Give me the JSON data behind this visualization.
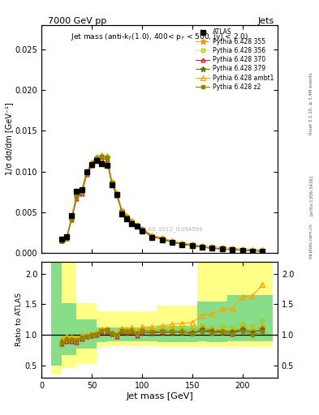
{
  "title_top_left": "7000 GeV pp",
  "title_top_right": "Jets",
  "plot_title": "Jet mass (anti-k$_T$(1.0), 400< p$_T$ < 500, |y| < 2.0)",
  "xlabel": "Jet mass [GeV]",
  "ylabel_main": "1/σ dσ/dm [GeV⁻¹]",
  "ylabel_ratio": "Ratio to ATLAS",
  "watermark": "ATLAS_2012_I1094564",
  "rivet_text": "Rivet 3.1.10, ≥ 3.4M events",
  "arxiv_text": "[arXiv:1306.3436]",
  "mcplots_text": "mcplots.cern.ch",
  "x_data": [
    20,
    25,
    30,
    35,
    40,
    45,
    50,
    55,
    60,
    65,
    70,
    75,
    80,
    85,
    90,
    95,
    100,
    110,
    120,
    130,
    140,
    150,
    160,
    170,
    180,
    190,
    200,
    210,
    220
  ],
  "atlas_y": [
    0.00175,
    0.002,
    0.0046,
    0.00755,
    0.0078,
    0.01,
    0.0109,
    0.0114,
    0.011,
    0.0108,
    0.0084,
    0.0072,
    0.0048,
    0.0042,
    0.0036,
    0.0033,
    0.0027,
    0.00195,
    0.00165,
    0.00128,
    0.00105,
    0.0009,
    0.00068,
    0.00058,
    0.00048,
    0.00042,
    0.00032,
    0.00028,
    0.00022
  ],
  "p355_y": [
    0.00158,
    0.00188,
    0.00435,
    0.00705,
    0.00762,
    0.0099,
    0.01098,
    0.01168,
    0.01188,
    0.01178,
    0.00872,
    0.00732,
    0.00522,
    0.00452,
    0.00392,
    0.00342,
    0.00293,
    0.00208,
    0.00178,
    0.00138,
    0.00113,
    0.00096,
    0.00076,
    0.00063,
    0.00052,
    0.00045,
    0.00036,
    0.0003,
    0.00025
  ],
  "p356_y": [
    0.0016,
    0.00192,
    0.00438,
    0.00708,
    0.00765,
    0.00993,
    0.011,
    0.01171,
    0.01191,
    0.01181,
    0.00874,
    0.00734,
    0.00524,
    0.00454,
    0.00394,
    0.00344,
    0.00295,
    0.0021,
    0.0018,
    0.0014,
    0.00115,
    0.00098,
    0.00078,
    0.00065,
    0.00054,
    0.00047,
    0.00038,
    0.00032,
    0.00027
  ],
  "p370_y": [
    0.00148,
    0.00178,
    0.00415,
    0.00668,
    0.00728,
    0.00965,
    0.01075,
    0.01145,
    0.01158,
    0.01148,
    0.00848,
    0.00708,
    0.00508,
    0.00438,
    0.00378,
    0.00328,
    0.00282,
    0.002,
    0.00172,
    0.00133,
    0.00109,
    0.00093,
    0.00073,
    0.00061,
    0.0005,
    0.00043,
    0.00035,
    0.00029,
    0.00024
  ],
  "p379_y": [
    0.00156,
    0.00186,
    0.00432,
    0.00702,
    0.00759,
    0.00987,
    0.01095,
    0.01165,
    0.01185,
    0.01175,
    0.00868,
    0.00728,
    0.00519,
    0.00449,
    0.00389,
    0.00339,
    0.0029,
    0.00206,
    0.00176,
    0.00136,
    0.00111,
    0.00094,
    0.00074,
    0.00062,
    0.00051,
    0.00044,
    0.00035,
    0.00029,
    0.00024
  ],
  "pambt1_y": [
    0.00165,
    0.00196,
    0.00442,
    0.00716,
    0.00773,
    0.01002,
    0.01112,
    0.01182,
    0.01202,
    0.01192,
    0.00882,
    0.00742,
    0.00532,
    0.00462,
    0.00402,
    0.00352,
    0.00305,
    0.0022,
    0.0019,
    0.0015,
    0.00125,
    0.00108,
    0.0009,
    0.00078,
    0.00068,
    0.0006,
    0.00052,
    0.00046,
    0.0004
  ],
  "pz2_y": [
    0.00153,
    0.00183,
    0.00422,
    0.00688,
    0.00745,
    0.00982,
    0.01092,
    0.01162,
    0.01182,
    0.01172,
    0.00862,
    0.00722,
    0.00514,
    0.00445,
    0.00385,
    0.00335,
    0.00288,
    0.00204,
    0.00174,
    0.00134,
    0.00109,
    0.00092,
    0.00072,
    0.0006,
    0.0005,
    0.00043,
    0.00034,
    0.00028,
    0.00023
  ],
  "ratio_x": [
    20,
    25,
    30,
    35,
    40,
    45,
    50,
    55,
    60,
    65,
    70,
    75,
    80,
    85,
    90,
    95,
    100,
    110,
    120,
    130,
    140,
    150,
    160,
    170,
    180,
    190,
    200,
    210,
    220
  ],
  "ratio_p355": [
    0.9,
    0.94,
    0.94,
    0.93,
    0.98,
    0.99,
    1.01,
    1.02,
    1.08,
    1.09,
    1.04,
    1.02,
    1.09,
    1.08,
    1.09,
    1.04,
    1.09,
    1.07,
    1.08,
    1.08,
    1.08,
    1.07,
    1.12,
    1.09,
    1.08,
    1.07,
    1.13,
    1.07,
    1.14
  ],
  "ratio_p356": [
    0.91,
    0.96,
    0.95,
    0.94,
    0.98,
    0.99,
    1.01,
    1.03,
    1.08,
    1.09,
    1.04,
    1.02,
    1.09,
    1.08,
    1.09,
    1.04,
    1.09,
    1.08,
    1.09,
    1.09,
    1.1,
    1.09,
    1.15,
    1.12,
    1.13,
    1.12,
    1.19,
    1.14,
    1.23
  ],
  "ratio_p370": [
    0.85,
    0.89,
    0.9,
    0.88,
    0.93,
    0.97,
    0.99,
    1.0,
    1.05,
    1.06,
    1.01,
    0.98,
    1.06,
    1.04,
    1.05,
    0.99,
    1.04,
    1.03,
    1.04,
    1.04,
    1.04,
    1.03,
    1.07,
    1.05,
    1.04,
    1.02,
    1.09,
    1.04,
    1.09
  ],
  "ratio_p379": [
    0.89,
    0.93,
    0.94,
    0.93,
    0.97,
    0.99,
    1.0,
    1.02,
    1.08,
    1.09,
    1.03,
    1.01,
    1.08,
    1.07,
    1.08,
    1.03,
    1.07,
    1.05,
    1.07,
    1.06,
    1.06,
    1.04,
    1.09,
    1.07,
    1.06,
    1.05,
    1.09,
    1.04,
    1.09
  ],
  "ratio_pambt1": [
    0.94,
    0.98,
    0.96,
    0.95,
    0.99,
    1.0,
    1.02,
    1.04,
    1.09,
    1.1,
    1.05,
    1.03,
    1.11,
    1.1,
    1.12,
    1.07,
    1.13,
    1.13,
    1.15,
    1.17,
    1.19,
    1.2,
    1.32,
    1.34,
    1.42,
    1.43,
    1.63,
    1.64,
    1.82
  ],
  "ratio_pz2": [
    0.87,
    0.92,
    0.92,
    0.91,
    0.96,
    0.98,
    1.0,
    1.02,
    1.07,
    1.08,
    1.03,
    1.0,
    1.07,
    1.06,
    1.07,
    1.02,
    1.07,
    1.05,
    1.05,
    1.05,
    1.04,
    1.02,
    1.06,
    1.03,
    1.04,
    1.02,
    1.06,
    1.0,
    1.05
  ],
  "color_p355": "#FF8C00",
  "color_p356": "#AACC00",
  "color_p370": "#CC2222",
  "color_p379": "#557700",
  "color_pambt1": "#FFA500",
  "color_pz2": "#888800",
  "color_atlas": "black",
  "ylim_main": [
    0,
    0.028
  ],
  "ylim_ratio": [
    0.3,
    2.2
  ],
  "xlim": [
    0,
    235
  ],
  "yticks_main": [
    0,
    0.005,
    0.01,
    0.015,
    0.02,
    0.025
  ],
  "yticks_ratio": [
    0.5,
    1.0,
    1.5,
    2.0
  ],
  "xticks": [
    0,
    50,
    100,
    150,
    200
  ],
  "yb_bins": [
    10,
    20,
    35,
    55,
    65,
    115,
    155,
    165,
    185,
    230
  ],
  "yb_low": [
    0.35,
    0.46,
    0.52,
    0.8,
    0.82,
    0.8,
    0.8,
    0.8,
    0.8
  ],
  "yb_high": [
    2.2,
    2.2,
    1.52,
    1.38,
    1.38,
    1.48,
    2.2,
    2.2,
    2.2
  ],
  "gb_bins": [
    10,
    20,
    35,
    55,
    65,
    115,
    155,
    165,
    185,
    230
  ],
  "gb_low": [
    0.5,
    0.67,
    0.78,
    0.88,
    0.9,
    0.88,
    0.9,
    0.88,
    0.9
  ],
  "gb_high": [
    2.2,
    1.52,
    1.25,
    1.12,
    1.12,
    1.15,
    1.55,
    1.55,
    1.65
  ]
}
